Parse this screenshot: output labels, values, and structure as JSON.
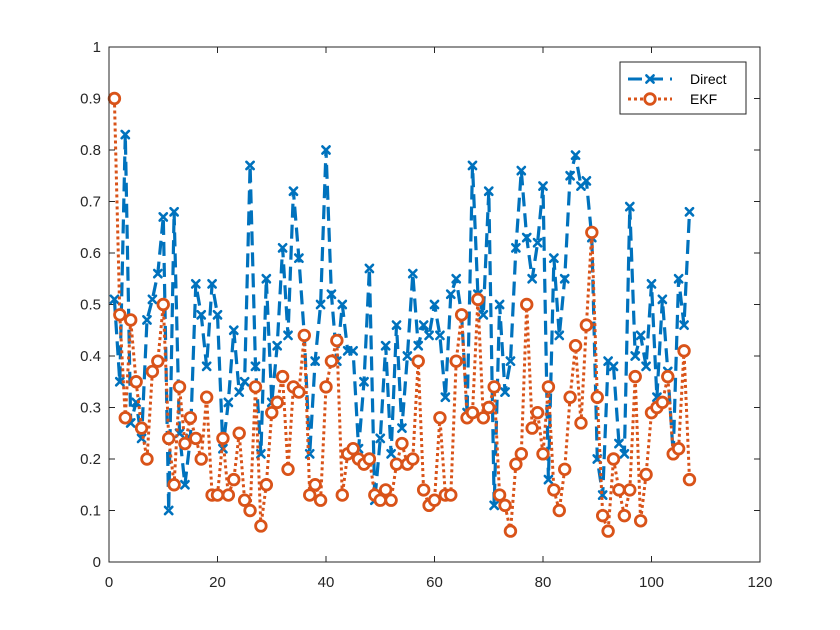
{
  "chart_data": {
    "type": "line",
    "title": "",
    "xlabel": "",
    "ylabel": "",
    "xlim": [
      0,
      120
    ],
    "ylim": [
      0,
      1
    ],
    "xticks": [
      0,
      20,
      40,
      60,
      80,
      100,
      120
    ],
    "yticks": [
      0,
      0.1,
      0.2,
      0.3,
      0.4,
      0.5,
      0.6,
      0.7,
      0.8,
      0.9,
      1
    ],
    "grid": false,
    "legend_position": "top-right",
    "series": [
      {
        "name": "Direct",
        "color": "#0072bd",
        "line_style": "dashed",
        "marker": "x",
        "x": [
          1,
          2,
          3,
          4,
          5,
          6,
          7,
          8,
          9,
          10,
          11,
          12,
          13,
          14,
          15,
          16,
          17,
          18,
          19,
          20,
          21,
          22,
          23,
          24,
          25,
          26,
          27,
          28,
          29,
          30,
          31,
          32,
          33,
          34,
          35,
          36,
          37,
          38,
          39,
          40,
          41,
          42,
          43,
          44,
          45,
          46,
          47,
          48,
          49,
          50,
          51,
          52,
          53,
          54,
          55,
          56,
          57,
          58,
          59,
          60,
          61,
          62,
          63,
          64,
          65,
          66,
          67,
          68,
          69,
          70,
          71,
          72,
          73,
          74,
          75,
          76,
          77,
          78,
          79,
          80,
          81,
          82,
          83,
          84,
          85,
          86,
          87,
          88,
          89,
          90,
          91,
          92,
          93,
          94,
          95,
          96,
          97,
          98,
          99,
          100,
          101,
          102,
          103,
          104,
          105,
          106,
          107
        ],
        "y": [
          0.51,
          0.35,
          0.83,
          0.27,
          0.31,
          0.24,
          0.47,
          0.51,
          0.56,
          0.67,
          0.1,
          0.68,
          0.25,
          0.15,
          0.24,
          0.54,
          0.48,
          0.38,
          0.54,
          0.48,
          0.22,
          0.31,
          0.45,
          0.33,
          0.35,
          0.77,
          0.38,
          0.21,
          0.55,
          0.31,
          0.42,
          0.61,
          0.44,
          0.72,
          0.59,
          0.44,
          0.21,
          0.39,
          0.5,
          0.8,
          0.52,
          0.39,
          0.5,
          0.41,
          0.41,
          0.22,
          0.35,
          0.57,
          0.12,
          0.24,
          0.42,
          0.21,
          0.46,
          0.26,
          0.4,
          0.56,
          0.42,
          0.46,
          0.44,
          0.5,
          0.44,
          0.32,
          0.52,
          0.55,
          0.48,
          0.29,
          0.77,
          0.52,
          0.48,
          0.72,
          0.11,
          0.5,
          0.33,
          0.39,
          0.61,
          0.76,
          0.63,
          0.55,
          0.62,
          0.73,
          0.16,
          0.59,
          0.44,
          0.55,
          0.75,
          0.79,
          0.73,
          0.74,
          0.63,
          0.2,
          0.13,
          0.39,
          0.38,
          0.23,
          0.21,
          0.69,
          0.4,
          0.44,
          0.38,
          0.54,
          0.32,
          0.51,
          0.37,
          0.21,
          0.55,
          0.46,
          0.68
        ]
      },
      {
        "name": "EKF",
        "color": "#d95319",
        "line_style": "dotted",
        "marker": "o",
        "x": [
          1,
          2,
          3,
          4,
          5,
          6,
          7,
          8,
          9,
          10,
          11,
          12,
          13,
          14,
          15,
          16,
          17,
          18,
          19,
          20,
          21,
          22,
          23,
          24,
          25,
          26,
          27,
          28,
          29,
          30,
          31,
          32,
          33,
          34,
          35,
          36,
          37,
          38,
          39,
          40,
          41,
          42,
          43,
          44,
          45,
          46,
          47,
          48,
          49,
          50,
          51,
          52,
          53,
          54,
          55,
          56,
          57,
          58,
          59,
          60,
          61,
          62,
          63,
          64,
          65,
          66,
          67,
          68,
          69,
          70,
          71,
          72,
          73,
          74,
          75,
          76,
          77,
          78,
          79,
          80,
          81,
          82,
          83,
          84,
          85,
          86,
          87,
          88,
          89,
          90,
          91,
          92,
          93,
          94,
          95,
          96,
          97,
          98,
          99,
          100,
          101,
          102,
          103,
          104,
          105,
          106,
          107
        ],
        "y": [
          0.9,
          0.48,
          0.28,
          0.47,
          0.35,
          0.26,
          0.2,
          0.37,
          0.39,
          0.5,
          0.24,
          0.15,
          0.34,
          0.23,
          0.28,
          0.24,
          0.2,
          0.32,
          0.13,
          0.13,
          0.24,
          0.13,
          0.16,
          0.25,
          0.12,
          0.1,
          0.34,
          0.07,
          0.15,
          0.29,
          0.31,
          0.36,
          0.18,
          0.34,
          0.33,
          0.44,
          0.13,
          0.15,
          0.12,
          0.34,
          0.39,
          0.43,
          0.13,
          0.21,
          0.22,
          0.2,
          0.19,
          0.2,
          0.13,
          0.12,
          0.14,
          0.12,
          0.19,
          0.23,
          0.19,
          0.2,
          0.39,
          0.14,
          0.11,
          0.12,
          0.28,
          0.13,
          0.13,
          0.39,
          0.48,
          0.28,
          0.29,
          0.51,
          0.28,
          0.3,
          0.34,
          0.13,
          0.11,
          0.06,
          0.19,
          0.21,
          0.5,
          0.26,
          0.29,
          0.21,
          0.34,
          0.14,
          0.1,
          0.18,
          0.32,
          0.42,
          0.27,
          0.46,
          0.64,
          0.32,
          0.09,
          0.06,
          0.2,
          0.14,
          0.09,
          0.14,
          0.36,
          0.08,
          0.17,
          0.29,
          0.3,
          0.31,
          0.36,
          0.21,
          0.22,
          0.41,
          0.16
        ]
      }
    ]
  }
}
